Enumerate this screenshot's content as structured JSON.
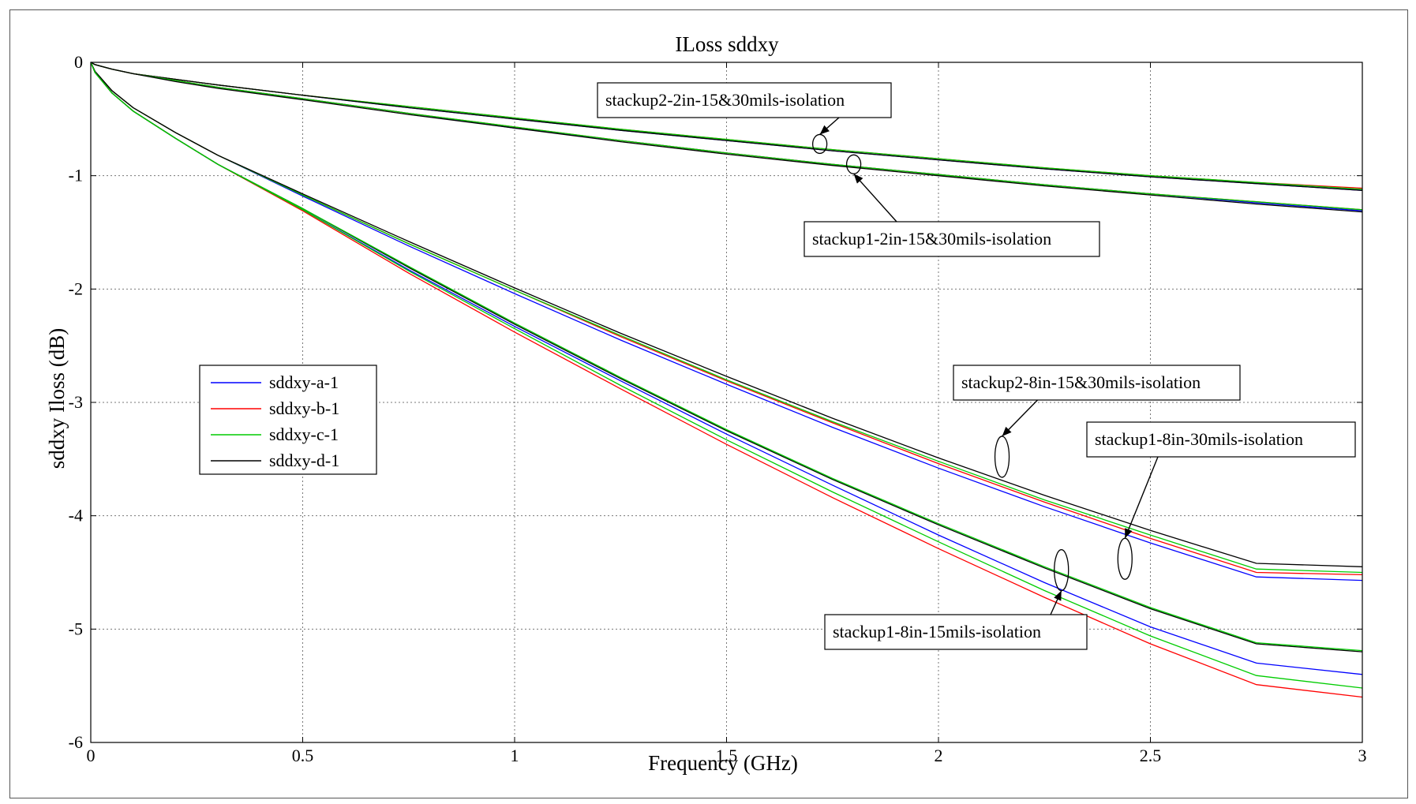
{
  "chart_data": {
    "type": "line",
    "title": "ILoss sddxy",
    "xlabel": "Frequency (GHz)",
    "ylabel": "sddxy Iloss (dB)",
    "xlim": [
      0,
      3
    ],
    "ylim": [
      -6,
      0
    ],
    "xticks": [
      0,
      0.5,
      1,
      1.5,
      2,
      2.5,
      3
    ],
    "xtick_labels": [
      "0",
      "0.5",
      "1",
      "1.5",
      "2",
      "2.5",
      "3"
    ],
    "yticks": [
      0,
      -1,
      -2,
      -3,
      -4,
      -5,
      -6
    ],
    "ytick_labels": [
      "0",
      "-1",
      "-2",
      "-3",
      "-4",
      "-5",
      "-6"
    ],
    "grid": true,
    "legend_position": "left",
    "legend": [
      {
        "label": "sddxy-a-1",
        "color": "#0000ff"
      },
      {
        "label": "sddxy-b-1",
        "color": "#ff0000"
      },
      {
        "label": "sddxy-c-1",
        "color": "#00cc00"
      },
      {
        "label": "sddxy-d-1",
        "color": "#000000"
      }
    ],
    "x": [
      0,
      0.01,
      0.05,
      0.1,
      0.2,
      0.3,
      0.5,
      0.75,
      1,
      1.25,
      1.5,
      1.75,
      2,
      2.25,
      2.5,
      2.75,
      3
    ],
    "series": [
      {
        "group": "stackup2-2in-15&30mils-isolation",
        "color": "#0000ff",
        "y": [
          0,
          -0.02,
          -0.06,
          -0.1,
          -0.15,
          -0.2,
          -0.29,
          -0.4,
          -0.5,
          -0.6,
          -0.69,
          -0.78,
          -0.86,
          -0.94,
          -1.01,
          -1.07,
          -1.13
        ]
      },
      {
        "group": "stackup2-2in-15&30mils-isolation",
        "color": "#ff0000",
        "y": [
          0,
          -0.02,
          -0.06,
          -0.1,
          -0.15,
          -0.2,
          -0.29,
          -0.39,
          -0.49,
          -0.59,
          -0.68,
          -0.77,
          -0.85,
          -0.93,
          -1.0,
          -1.06,
          -1.11
        ]
      },
      {
        "group": "stackup2-2in-15&30mils-isolation",
        "color": "#00cc00",
        "y": [
          0,
          -0.02,
          -0.06,
          -0.1,
          -0.15,
          -0.2,
          -0.29,
          -0.39,
          -0.49,
          -0.59,
          -0.68,
          -0.77,
          -0.85,
          -0.93,
          -1.0,
          -1.06,
          -1.12
        ]
      },
      {
        "group": "stackup2-2in-15&30mils-isolation",
        "color": "#000000",
        "y": [
          0,
          -0.02,
          -0.06,
          -0.1,
          -0.15,
          -0.2,
          -0.29,
          -0.4,
          -0.5,
          -0.6,
          -0.69,
          -0.78,
          -0.86,
          -0.94,
          -1.01,
          -1.07,
          -1.13
        ]
      },
      {
        "group": "stackup1-2in-15&30mils-isolation",
        "color": "#0000ff",
        "y": [
          0,
          -0.02,
          -0.06,
          -0.1,
          -0.16,
          -0.22,
          -0.32,
          -0.45,
          -0.58,
          -0.69,
          -0.8,
          -0.9,
          -0.99,
          -1.08,
          -1.16,
          -1.24,
          -1.31
        ]
      },
      {
        "group": "stackup1-2in-15&30mils-isolation",
        "color": "#ff0000",
        "y": [
          0,
          -0.02,
          -0.06,
          -0.1,
          -0.16,
          -0.22,
          -0.32,
          -0.45,
          -0.57,
          -0.69,
          -0.8,
          -0.9,
          -0.99,
          -1.08,
          -1.16,
          -1.23,
          -1.3
        ]
      },
      {
        "group": "stackup1-2in-15&30mils-isolation",
        "color": "#00cc00",
        "y": [
          0,
          -0.02,
          -0.06,
          -0.1,
          -0.16,
          -0.22,
          -0.32,
          -0.45,
          -0.57,
          -0.69,
          -0.8,
          -0.9,
          -0.99,
          -1.08,
          -1.16,
          -1.23,
          -1.3
        ]
      },
      {
        "group": "stackup1-2in-15&30mils-isolation",
        "color": "#000000",
        "y": [
          0,
          -0.02,
          -0.06,
          -0.1,
          -0.17,
          -0.23,
          -0.33,
          -0.46,
          -0.58,
          -0.7,
          -0.81,
          -0.91,
          -1.0,
          -1.09,
          -1.17,
          -1.25,
          -1.32
        ]
      },
      {
        "group": "stackup2-8in-15&30mils-isolation",
        "color": "#0000ff",
        "y": [
          0,
          -0.08,
          -0.25,
          -0.4,
          -0.62,
          -0.82,
          -1.18,
          -1.62,
          -2.04,
          -2.45,
          -2.84,
          -3.22,
          -3.58,
          -3.92,
          -4.24,
          -4.54,
          -4.57
        ]
      },
      {
        "group": "stackup2-8in-15&30mils-isolation",
        "color": "#ff0000",
        "y": [
          0,
          -0.08,
          -0.25,
          -0.4,
          -0.62,
          -0.82,
          -1.17,
          -1.6,
          -2.01,
          -2.42,
          -2.81,
          -3.18,
          -3.54,
          -3.88,
          -4.2,
          -4.5,
          -4.52
        ]
      },
      {
        "group": "stackup2-8in-15&30mils-isolation",
        "color": "#00cc00",
        "y": [
          0,
          -0.08,
          -0.25,
          -0.4,
          -0.62,
          -0.82,
          -1.17,
          -1.6,
          -2.01,
          -2.41,
          -2.8,
          -3.17,
          -3.52,
          -3.86,
          -4.17,
          -4.47,
          -4.5
        ]
      },
      {
        "group": "stackup2-8in-15&30mils-isolation",
        "color": "#000000",
        "y": [
          0,
          -0.08,
          -0.25,
          -0.4,
          -0.62,
          -0.82,
          -1.16,
          -1.58,
          -1.99,
          -2.39,
          -2.77,
          -3.14,
          -3.49,
          -3.82,
          -4.13,
          -4.42,
          -4.45
        ]
      },
      {
        "group": "stackup1-8in-15mils-isolation",
        "color": "#0000ff",
        "y": [
          0,
          -0.09,
          -0.27,
          -0.43,
          -0.67,
          -0.9,
          -1.3,
          -1.83,
          -2.33,
          -2.81,
          -3.28,
          -3.73,
          -4.17,
          -4.59,
          -4.98,
          -5.3,
          -5.4
        ]
      },
      {
        "group": "stackup1-8in-15mils-isolation",
        "color": "#ff0000",
        "y": [
          0,
          -0.09,
          -0.27,
          -0.43,
          -0.67,
          -0.9,
          -1.31,
          -1.86,
          -2.38,
          -2.88,
          -3.37,
          -3.84,
          -4.29,
          -4.72,
          -5.13,
          -5.49,
          -5.6
        ]
      },
      {
        "group": "stackup1-8in-15mils-isolation",
        "color": "#00cc00",
        "y": [
          0,
          -0.09,
          -0.27,
          -0.43,
          -0.67,
          -0.9,
          -1.3,
          -1.84,
          -2.35,
          -2.85,
          -3.33,
          -3.79,
          -4.23,
          -4.66,
          -5.06,
          -5.41,
          -5.52
        ]
      },
      {
        "group": "stackup1-8in-30mils-isolation",
        "color": "#000000",
        "y": [
          0,
          -0.09,
          -0.27,
          -0.43,
          -0.67,
          -0.9,
          -1.29,
          -1.81,
          -2.31,
          -2.79,
          -3.25,
          -3.68,
          -4.08,
          -4.46,
          -4.82,
          -5.13,
          -5.2
        ]
      },
      {
        "group": "stackup1-8in-30mils-isolation",
        "color": "#00cc00",
        "y": [
          0,
          -0.09,
          -0.27,
          -0.43,
          -0.67,
          -0.9,
          -1.29,
          -1.8,
          -2.3,
          -2.78,
          -3.24,
          -3.67,
          -4.07,
          -4.45,
          -4.81,
          -5.12,
          -5.19
        ]
      }
    ],
    "annotations": [
      {
        "text": "stackup2-2in-15&30mils-isolation",
        "target_x": 1.72,
        "target_y": -0.72
      },
      {
        "text": "stackup1-2in-15&30mils-isolation",
        "target_x": 1.8,
        "target_y": -0.9
      },
      {
        "text": "stackup2-8in-15&30mils-isolation",
        "target_x": 2.15,
        "target_y": -3.48
      },
      {
        "text": "stackup1-8in-30mils-isolation",
        "target_x": 2.44,
        "target_y": -4.38
      },
      {
        "text": "stackup1-8in-15mils-isolation",
        "target_x": 2.29,
        "target_y": -4.48
      }
    ]
  }
}
